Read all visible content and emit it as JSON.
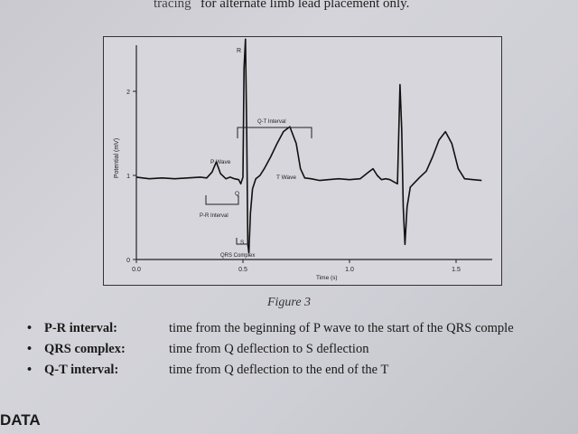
{
  "header_text": {
    "left_fragment": "tracing",
    "main": "for alternate limb lead placement only."
  },
  "figure": {
    "caption": "Figure 3",
    "axes": {
      "x_label": "Time (s)",
      "y_label": "Potential (mV)",
      "x_ticks": [
        "0.0",
        "0.5",
        "1.0",
        "1.5"
      ],
      "y_ticks": [
        "0",
        "1",
        "2"
      ],
      "x_range": [
        0,
        1.65
      ],
      "y_range": [
        0,
        2.4
      ]
    },
    "annotations": {
      "p_wave": "P Wave",
      "t_wave": "T Wave",
      "r": "R",
      "q": "Q",
      "s": "S",
      "pr_interval": "P-R Interval",
      "qt_interval": "Q-T Interval",
      "qrs_complex": "QRS Complex"
    }
  },
  "definitions": [
    {
      "bullet": "•",
      "term": "P-R interval:",
      "text": "time from the beginning of P wave to the start of the QRS comple"
    },
    {
      "bullet": "•",
      "term": "QRS complex:",
      "text": "time from Q deflection to S deflection"
    },
    {
      "bullet": "•",
      "term": "Q-T interval:",
      "text": "time from Q deflection to the end of the T"
    }
  ],
  "section_heading": "DATA",
  "chart_data": {
    "type": "line",
    "title": "",
    "xlabel": "Time (s)",
    "ylabel": "Potential (mV)",
    "xlim": [
      0,
      1.65
    ],
    "ylim": [
      0,
      2.4
    ],
    "grid": false,
    "series": [
      {
        "x": [
          0.0,
          0.06,
          0.12,
          0.18,
          0.24,
          0.3,
          0.33,
          0.355,
          0.375,
          0.395,
          0.42,
          0.44,
          0.46,
          0.48,
          0.49,
          0.5,
          0.505,
          0.512,
          0.518,
          0.523,
          0.528,
          0.535,
          0.545,
          0.56,
          0.58,
          0.6,
          0.63,
          0.66,
          0.69,
          0.72,
          0.75,
          0.77,
          0.79,
          0.82,
          0.86,
          0.9,
          0.95,
          1.0,
          1.05,
          1.09,
          1.11,
          1.13,
          1.15,
          1.17,
          1.19,
          1.21,
          1.225,
          1.237,
          1.245,
          1.252,
          1.26,
          1.27,
          1.285,
          1.3,
          1.33,
          1.36,
          1.39,
          1.42,
          1.45,
          1.48,
          1.51,
          1.54,
          1.58,
          1.62
        ],
        "y": [
          0.98,
          0.96,
          0.97,
          0.96,
          0.97,
          0.98,
          0.97,
          1.04,
          1.16,
          1.02,
          0.96,
          0.98,
          0.96,
          0.95,
          0.9,
          0.98,
          2.28,
          2.62,
          1.5,
          0.18,
          0.08,
          0.55,
          0.84,
          0.96,
          1.0,
          1.08,
          1.22,
          1.38,
          1.52,
          1.58,
          1.38,
          1.08,
          0.97,
          0.96,
          0.94,
          0.95,
          0.96,
          0.95,
          0.96,
          1.04,
          1.08,
          1.0,
          0.95,
          0.96,
          0.95,
          0.92,
          0.9,
          2.08,
          1.55,
          0.62,
          0.18,
          0.62,
          0.86,
          0.9,
          0.98,
          1.05,
          1.22,
          1.42,
          1.52,
          1.38,
          1.08,
          0.96,
          0.95,
          0.94
        ]
      }
    ]
  }
}
